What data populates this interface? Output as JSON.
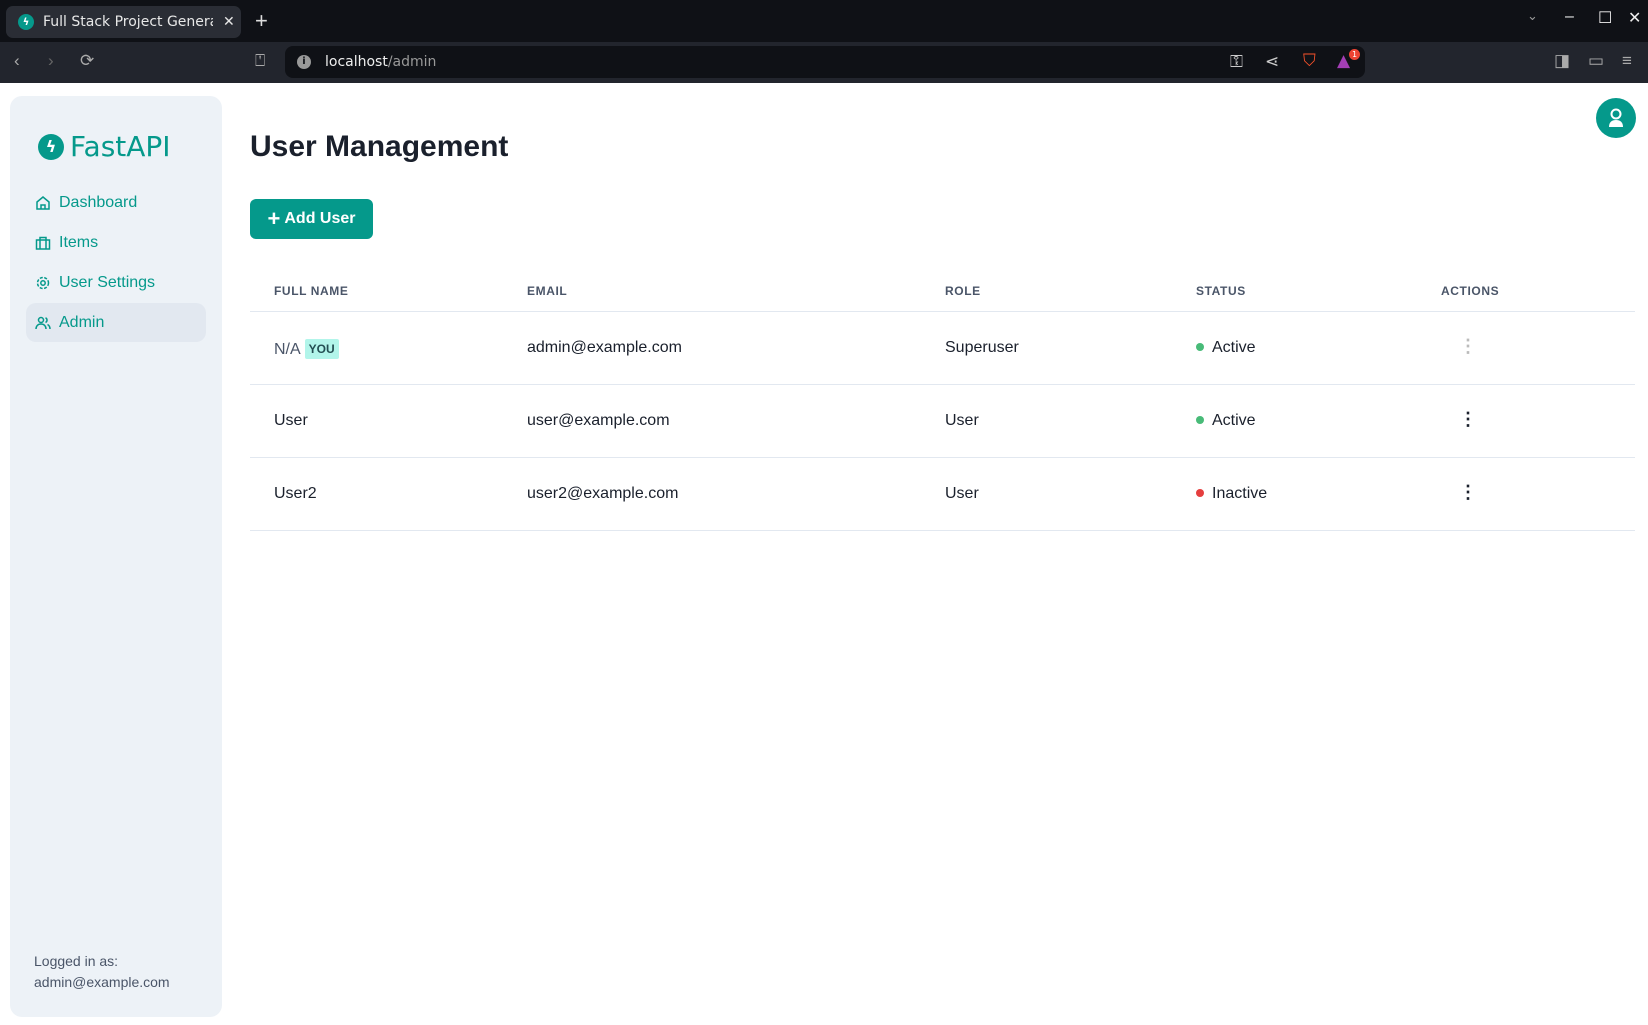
{
  "browser": {
    "tab_title": "Full Stack Project Generator",
    "url_host": "localhost",
    "url_path": "/admin",
    "notification_badge": "1"
  },
  "sidebar": {
    "logo": "FastAPI",
    "items": [
      {
        "label": "Dashboard",
        "icon": "home-icon"
      },
      {
        "label": "Items",
        "icon": "briefcase-icon"
      },
      {
        "label": "User Settings",
        "icon": "gear-icon"
      },
      {
        "label": "Admin",
        "icon": "users-icon",
        "active": true
      }
    ],
    "logged_in_label": "Logged in as:",
    "logged_in_email": "admin@example.com"
  },
  "main": {
    "title": "User Management",
    "add_user_label": "Add User",
    "table": {
      "headers": [
        "FULL NAME",
        "EMAIL",
        "ROLE",
        "STATUS",
        "ACTIONS"
      ],
      "rows": [
        {
          "name": "N/A",
          "badge": "YOU",
          "email": "admin@example.com",
          "role": "Superuser",
          "status": "Active",
          "status_color": "#48bb78"
        },
        {
          "name": "User",
          "email": "user@example.com",
          "role": "User",
          "status": "Active",
          "status_color": "#48bb78"
        },
        {
          "name": "User2",
          "email": "user2@example.com",
          "role": "User",
          "status": "Inactive",
          "status_color": "#e53e3e"
        }
      ]
    }
  },
  "colors": {
    "accent": "#05998b"
  }
}
